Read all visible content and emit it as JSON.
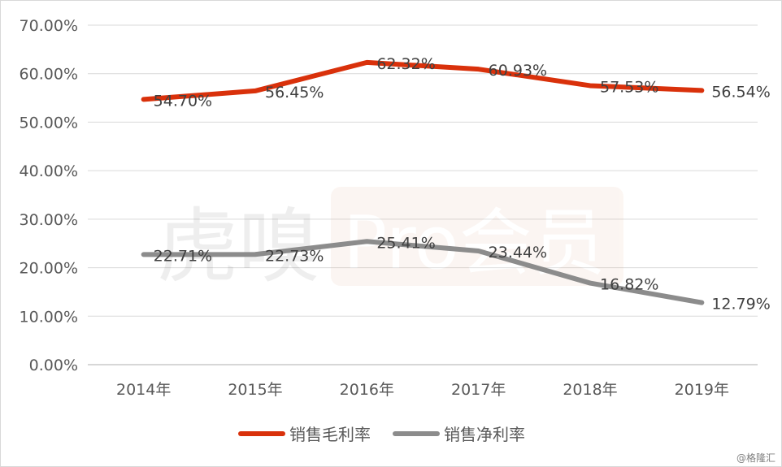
{
  "chart_data": {
    "type": "line",
    "categories": [
      "2014年",
      "2015年",
      "2016年",
      "2017年",
      "2018年",
      "2019年"
    ],
    "series": [
      {
        "name": "销售毛利率",
        "values": [
          54.7,
          56.45,
          62.32,
          60.93,
          57.53,
          56.54
        ],
        "labels": [
          "54.70%",
          "56.45%",
          "62.32%",
          "60.93%",
          "57.53%",
          "56.54%"
        ],
        "color": "#d9310b"
      },
      {
        "name": "销售净利率",
        "values": [
          22.71,
          22.73,
          25.41,
          23.44,
          16.82,
          12.79
        ],
        "labels": [
          "22.71%",
          "22.73%",
          "25.41%",
          "23.44%",
          "16.82%",
          "12.79%"
        ],
        "color": "#8c8c8c"
      }
    ],
    "ylim": [
      0,
      70
    ],
    "yticks": [
      "0.00%",
      "10.00%",
      "20.00%",
      "30.00%",
      "40.00%",
      "50.00%",
      "60.00%",
      "70.00%"
    ],
    "grid": true,
    "legend_position": "bottom-center"
  },
  "watermark": {
    "logo_text": "虎嗅",
    "badge_text": "Pro会员"
  },
  "credit": "@格隆汇"
}
